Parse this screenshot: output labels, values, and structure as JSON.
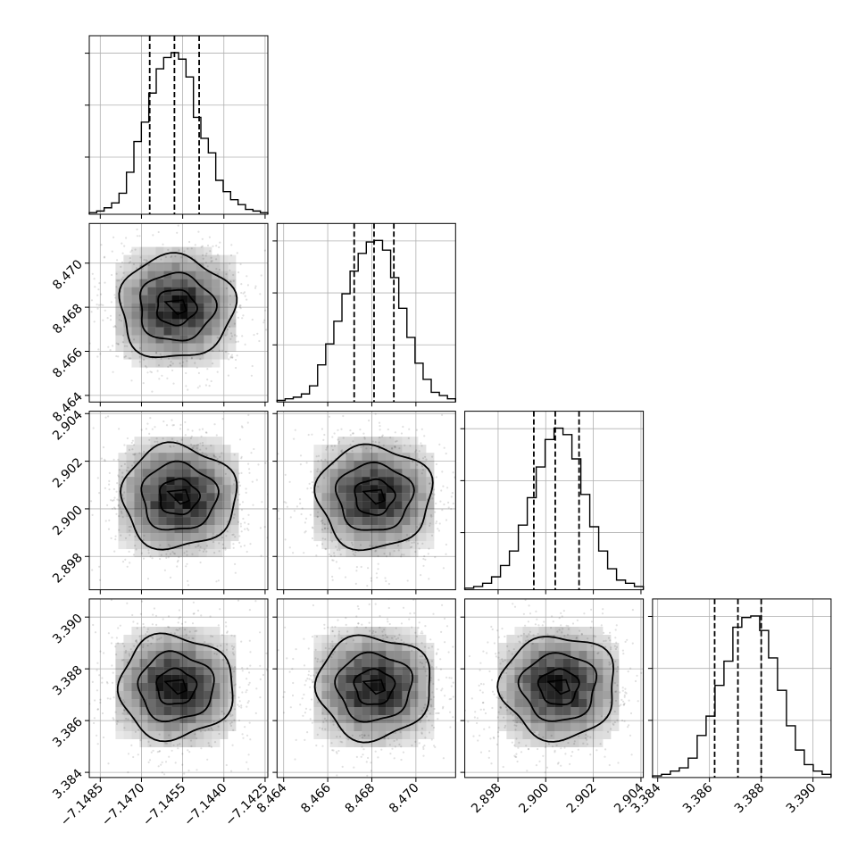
{
  "chart_data": {
    "type": "corner",
    "parameters": [
      {
        "range": [
          -7.1489,
          -7.1424
        ],
        "ticks": [
          -7.1485,
          -7.147,
          -7.1455,
          -7.144,
          -7.1425
        ],
        "tick_labels": [
          "−7.1485",
          "−7.1470",
          "−7.1455",
          "−7.1440",
          "−7.1425"
        ],
        "quantiles": [
          -7.1467,
          -7.1458,
          -7.1449
        ],
        "hist": [
          0.01,
          0.02,
          0.04,
          0.07,
          0.13,
          0.26,
          0.45,
          0.57,
          0.75,
          0.9,
          0.97,
          1.0,
          0.96,
          0.85,
          0.6,
          0.47,
          0.38,
          0.21,
          0.14,
          0.09,
          0.06,
          0.03,
          0.02,
          0.01
        ],
        "show_x_labels": true,
        "show_y_labels": false
      },
      {
        "range": [
          8.4637,
          8.4718
        ],
        "ticks": [
          8.464,
          8.466,
          8.468,
          8.47
        ],
        "tick_labels": [
          "8.464",
          "8.466",
          "8.468",
          "8.470"
        ],
        "quantiles": [
          8.4672,
          8.4681,
          8.469
        ],
        "hist": [
          0.01,
          0.02,
          0.03,
          0.05,
          0.1,
          0.23,
          0.36,
          0.5,
          0.67,
          0.81,
          0.92,
          0.99,
          1.0,
          0.94,
          0.77,
          0.58,
          0.4,
          0.24,
          0.14,
          0.06,
          0.04,
          0.02
        ],
        "show_x_labels": true,
        "show_y_labels": true
      },
      {
        "range": [
          2.8966,
          2.9041
        ],
        "ticks": [
          2.898,
          2.9,
          2.902,
          2.904
        ],
        "tick_labels": [
          "2.898",
          "2.900",
          "2.902",
          "2.904"
        ],
        "quantiles": [
          2.8995,
          2.9004,
          2.9014
        ],
        "hist": [
          0.01,
          0.02,
          0.04,
          0.08,
          0.15,
          0.24,
          0.4,
          0.57,
          0.76,
          0.93,
          1.0,
          0.96,
          0.81,
          0.59,
          0.39,
          0.24,
          0.13,
          0.06,
          0.04,
          0.02
        ],
        "show_x_labels": true,
        "show_y_labels": true
      },
      {
        "range": [
          3.3838,
          3.3907
        ],
        "ticks": [
          3.384,
          3.386,
          3.388,
          3.39
        ],
        "tick_labels": [
          "3.384",
          "3.386",
          "3.388",
          "3.390"
        ],
        "quantiles": [
          3.3862,
          3.3871,
          3.388
        ],
        "hist": [
          0.01,
          0.02,
          0.04,
          0.06,
          0.12,
          0.26,
          0.38,
          0.57,
          0.72,
          0.93,
          0.99,
          1.0,
          0.91,
          0.74,
          0.54,
          0.32,
          0.17,
          0.08,
          0.04,
          0.02
        ],
        "show_x_labels": true,
        "show_y_labels": true
      }
    ],
    "density_centers": {
      "1-0": [
        -7.14575,
        8.468
      ],
      "2-0": [
        -7.14565,
        2.9005
      ],
      "2-1": [
        8.4681,
        2.9005
      ],
      "3-0": [
        -7.14575,
        3.3873
      ],
      "3-1": [
        8.4681,
        3.3873
      ],
      "3-2": [
        2.90055,
        3.3873
      ]
    },
    "grid": true,
    "colors": {
      "line": "#000000",
      "grid": "#b0b0b0",
      "scatter": "#000000",
      "density": "#000000"
    }
  }
}
